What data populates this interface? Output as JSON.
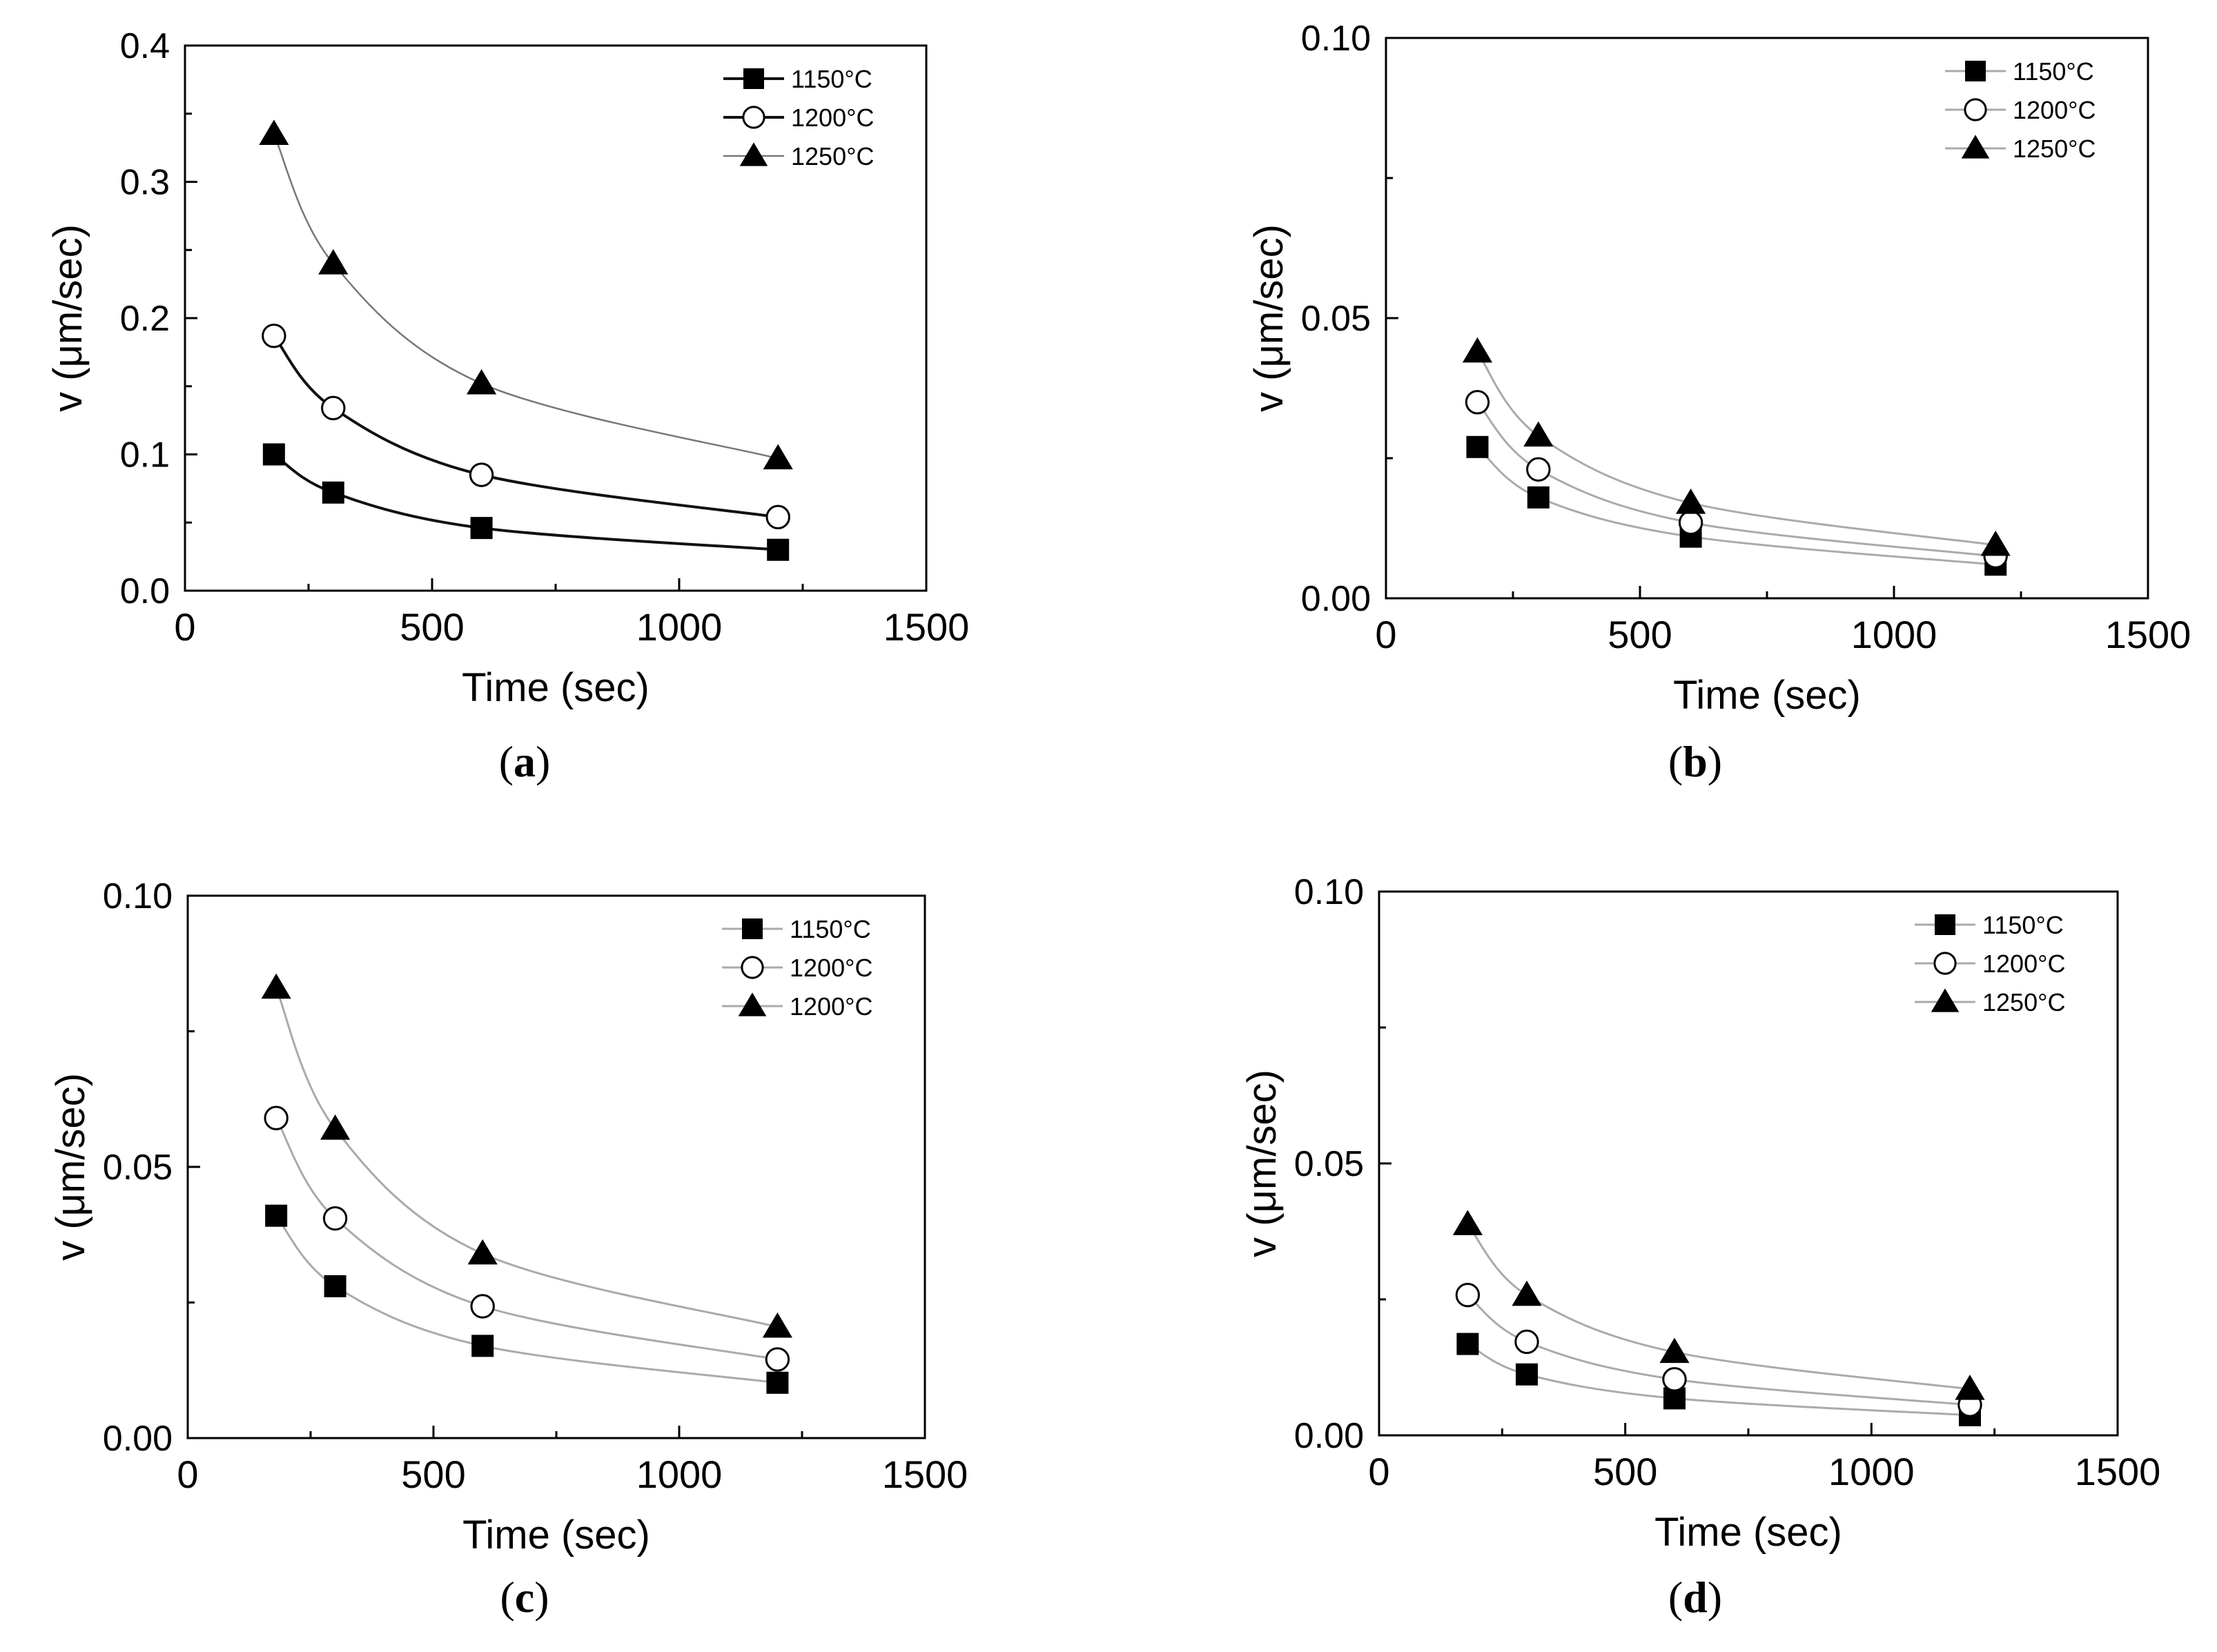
{
  "chart_data": [
    {
      "type": "line",
      "panel_label": "a",
      "caption": "(a)",
      "xlabel": "Time (sec)",
      "ylabel": "v (μm/sec)",
      "xlim": [
        0,
        1500
      ],
      "ylim": [
        0,
        0.4
      ],
      "xticks": [
        "0",
        "500",
        "1000",
        "1500"
      ],
      "yticks": [
        "0.0",
        "0.1",
        "0.2",
        "0.3",
        "0.4"
      ],
      "grid": false,
      "legend": "top-right",
      "x": [
        180,
        300,
        600,
        1200
      ],
      "series": [
        {
          "name": "1150°C",
          "marker": "square",
          "values": [
            0.1,
            0.072,
            0.046,
            0.03
          ]
        },
        {
          "name": "1200°C",
          "marker": "circle-open",
          "values": [
            0.187,
            0.134,
            0.085,
            0.054
          ]
        },
        {
          "name": "1250°C",
          "marker": "triangle",
          "values": [
            0.335,
            0.24,
            0.152,
            0.097
          ]
        }
      ]
    },
    {
      "type": "line",
      "panel_label": "b",
      "caption": "(b)",
      "xlabel": "Time (sec)",
      "ylabel": "v (μm/sec)",
      "xlim": [
        0,
        1500
      ],
      "ylim": [
        0,
        0.1
      ],
      "xticks": [
        "0",
        "500",
        "1000",
        "1500"
      ],
      "yticks": [
        "0.00",
        "0.05",
        "0.10"
      ],
      "grid": false,
      "legend": "top-right",
      "x": [
        180,
        300,
        600,
        1200
      ],
      "series": [
        {
          "name": "1150°C",
          "marker": "square",
          "values": [
            0.027,
            0.018,
            0.011,
            0.006
          ]
        },
        {
          "name": "1200°C",
          "marker": "circle-open",
          "values": [
            0.035,
            0.023,
            0.0135,
            0.0075
          ]
        },
        {
          "name": "1250°C",
          "marker": "triangle",
          "values": [
            0.044,
            0.029,
            0.017,
            0.0095
          ]
        }
      ]
    },
    {
      "type": "line",
      "panel_label": "c",
      "caption": "(c)",
      "xlabel": "Time (sec)",
      "ylabel": "v (μm/sec)",
      "xlim": [
        0,
        1500
      ],
      "ylim": [
        0,
        0.1
      ],
      "xticks": [
        "0",
        "500",
        "1000",
        "1500"
      ],
      "yticks": [
        "0.00",
        "0.05",
        "0.10"
      ],
      "grid": false,
      "legend": "top-right",
      "x": [
        180,
        300,
        600,
        1200
      ],
      "series": [
        {
          "name": "1150°C",
          "marker": "square",
          "values": [
            0.041,
            0.028,
            0.017,
            0.0102
          ]
        },
        {
          "name": "1200°C",
          "marker": "circle-open",
          "values": [
            0.059,
            0.0405,
            0.0243,
            0.0145
          ]
        },
        {
          "name": "1200°C",
          "marker": "triangle",
          "values": [
            0.083,
            0.057,
            0.034,
            0.0205
          ]
        }
      ]
    },
    {
      "type": "line",
      "panel_label": "d",
      "caption": "(d)",
      "xlabel": "Time (sec)",
      "ylabel": "v (μm/sec)",
      "xlim": [
        0,
        1500
      ],
      "ylim": [
        0,
        0.1
      ],
      "xticks": [
        "0",
        "500",
        "1000",
        "1500"
      ],
      "yticks": [
        "0.00",
        "0.05",
        "0.10"
      ],
      "grid": false,
      "legend": "top-right",
      "x": [
        180,
        300,
        600,
        1200
      ],
      "series": [
        {
          "name": "1150°C",
          "marker": "square",
          "values": [
            0.0168,
            0.0112,
            0.0068,
            0.0037
          ]
        },
        {
          "name": "1200°C",
          "marker": "circle-open",
          "values": [
            0.0258,
            0.0172,
            0.0103,
            0.0056
          ]
        },
        {
          "name": "1250°C",
          "marker": "triangle",
          "values": [
            0.0388,
            0.0258,
            0.0153,
            0.0085
          ]
        }
      ]
    }
  ]
}
